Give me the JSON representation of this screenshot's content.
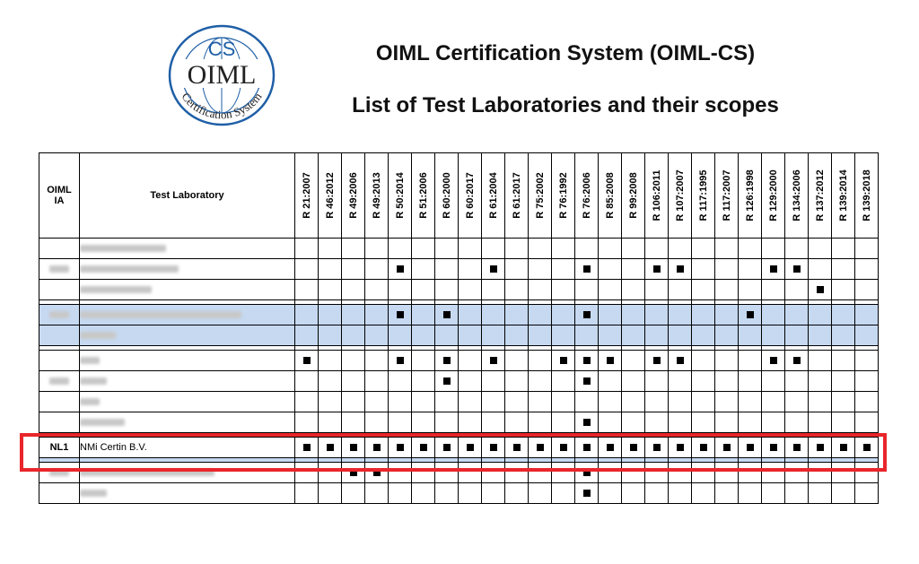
{
  "header": {
    "title_line1": "OIML Certification System (OIML-CS)",
    "title_line2": "List of Test Laboratories and their scopes"
  },
  "logo": {
    "cs_text": "CS",
    "oiml_text": "OIML",
    "ring_text": "Certification System",
    "color": "#1f5fa6"
  },
  "table": {
    "col_ia": "OIML\nIA",
    "col_lab": "Test Laboratory",
    "recommendations": [
      "R 21:2007",
      "R 46:2012",
      "R 49:2006",
      "R 49:2013",
      "R 50:2014",
      "R 51:2006",
      "R 60:2000",
      "R 60:2017",
      "R 61:2004",
      "R 61:2017",
      "R 75:2002",
      "R 76:1992",
      "R 76:2006",
      "R 85:2008",
      "R 99:2008",
      "R 106:2011",
      "R 107:2007",
      "R 117:1995",
      "R 117:2007",
      "R 126:1998",
      "R 129:2000",
      "R 134:2006",
      "R 137:2012",
      "R 139:2014",
      "R 139:2018"
    ],
    "highlighted_row": {
      "ia": "NL1",
      "lab": "NMi Certin B.V."
    }
  },
  "colors": {
    "row_blue": "#c6d9f1",
    "highlight_red": "#e8262b"
  }
}
